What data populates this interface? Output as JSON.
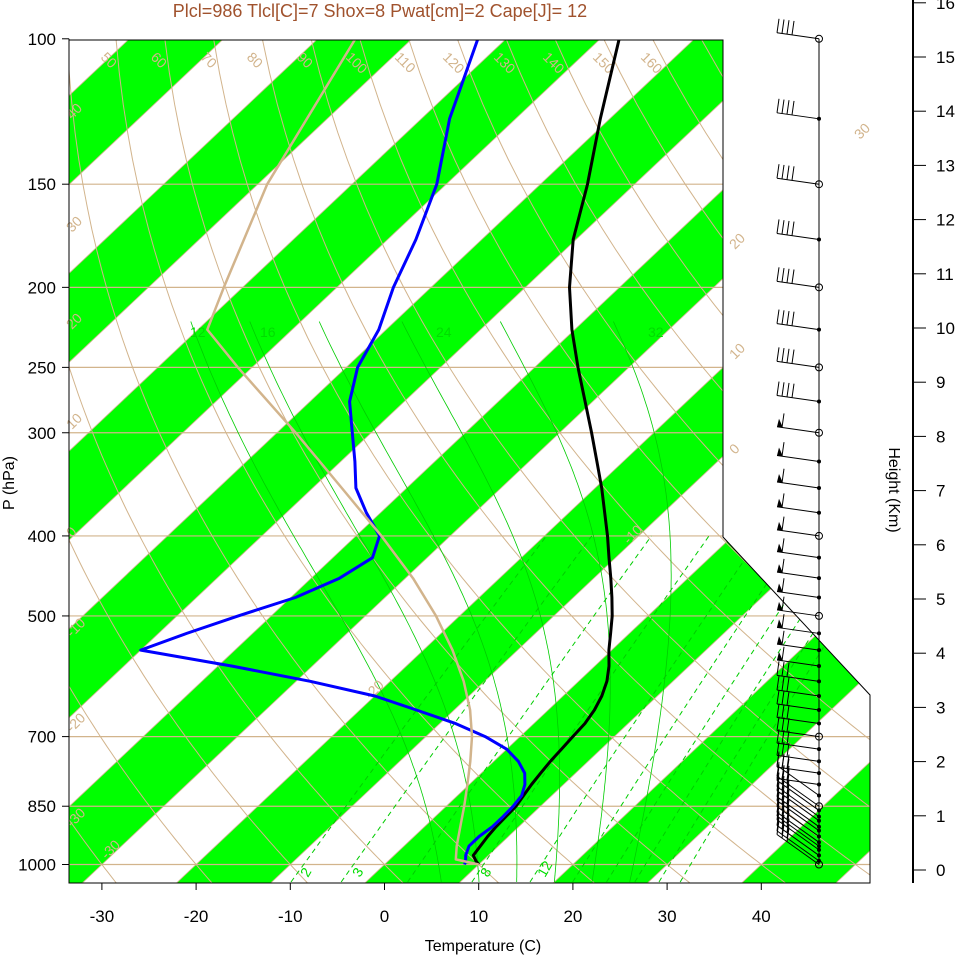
{
  "chart_data": {
    "type": "skew-t",
    "title": "Plcl=986 Tlcl[C]=7 Shox=8 Pwat[cm]=2 Cape[J]= 12",
    "xlabel": "Temperature (C)",
    "ylabel": "P (hPa)",
    "right_axis_label": "Height (Km)",
    "x_ticks": [
      "-30",
      "-20",
      "-10",
      "0",
      "10",
      "20",
      "30",
      "40"
    ],
    "y_ticks": [
      "100",
      "150",
      "200",
      "250",
      "300",
      "400",
      "500",
      "700",
      "850",
      "1000"
    ],
    "height_ticks": [
      "0",
      "1",
      "2",
      "3",
      "4",
      "5",
      "6",
      "7",
      "8",
      "9",
      "10",
      "11",
      "12",
      "13",
      "14",
      "15",
      "16"
    ],
    "xlim": [
      -33.5,
      52
    ],
    "ylim_hpa": [
      1050,
      100
    ],
    "isotherm_labels": [
      "-30",
      "-20",
      "-10",
      "0",
      "10",
      "20",
      "30"
    ],
    "dry_adiabat_labels": [
      "-30",
      "-20",
      "-10",
      "0",
      "10",
      "20",
      "30",
      "40",
      "50",
      "60",
      "70",
      "80",
      "90",
      "100",
      "110",
      "120",
      "130",
      "140",
      "150",
      "160"
    ],
    "mixing_ratio_labels": [
      "2",
      "3",
      "8",
      "12",
      "12",
      "16",
      "24",
      "32"
    ],
    "colors": {
      "isotherm_band": "#00ff00",
      "lines": "#d2b48c",
      "temperature": "#000000",
      "dewpoint": "#0000ff",
      "parcel": "#d2b48c",
      "mixing_ratio": "#00cc00",
      "title": "#a0522d"
    },
    "series": [
      {
        "points": [
          [
            1000,
            10
          ],
          [
            990,
            9.3
          ],
          [
            975,
            8.4
          ],
          [
            950,
            8.1
          ],
          [
            925,
            7.8
          ],
          [
            900,
            7.6
          ],
          [
            875,
            7.5
          ],
          [
            850,
            7.4
          ],
          [
            825,
            7.0
          ],
          [
            800,
            6.6
          ],
          [
            775,
            6.3
          ],
          [
            750,
            6.0
          ],
          [
            725,
            5.8
          ],
          [
            700,
            5.6
          ],
          [
            675,
            5.4
          ],
          [
            650,
            4.9
          ],
          [
            625,
            4.1
          ],
          [
            600,
            3.0
          ],
          [
            575,
            1.5
          ],
          [
            550,
            -0.3
          ],
          [
            525,
            -2.0
          ],
          [
            500,
            -3.8
          ],
          [
            475,
            -5.9
          ],
          [
            450,
            -8.2
          ],
          [
            425,
            -10.7
          ],
          [
            400,
            -13.3
          ],
          [
            375,
            -16.2
          ],
          [
            350,
            -19.3
          ],
          [
            325,
            -22.8
          ],
          [
            300,
            -26.6
          ],
          [
            275,
            -30.8
          ],
          [
            250,
            -35.4
          ],
          [
            225,
            -40.3
          ],
          [
            200,
            -45.3
          ],
          [
            175,
            -50.3
          ],
          [
            150,
            -55.0
          ],
          [
            125,
            -61.0
          ],
          [
            100,
            -68.0
          ]
        ]
      },
      {
        "points": [
          [
            1000,
            8.5
          ],
          [
            990,
            8.2
          ],
          [
            975,
            7.6
          ],
          [
            950,
            6.9
          ],
          [
            925,
            6.9
          ],
          [
            900,
            7.2
          ],
          [
            875,
            7.2
          ],
          [
            850,
            7.1
          ],
          [
            825,
            6.8
          ],
          [
            800,
            5.9
          ],
          [
            775,
            4.6
          ],
          [
            750,
            2.6
          ],
          [
            725,
            0.0
          ],
          [
            700,
            -3.7
          ],
          [
            675,
            -8.3
          ],
          [
            650,
            -14.0
          ],
          [
            625,
            -20.0
          ],
          [
            600,
            -28.5
          ],
          [
            575,
            -38.5
          ],
          [
            550,
            -50.0
          ],
          [
            525,
            -47.0
          ],
          [
            500,
            -43.5
          ],
          [
            475,
            -39.5
          ],
          [
            450,
            -37.0
          ],
          [
            425,
            -35.8
          ],
          [
            400,
            -37.5
          ],
          [
            375,
            -41.5
          ],
          [
            350,
            -45.4
          ],
          [
            325,
            -48.5
          ],
          [
            300,
            -52.0
          ],
          [
            275,
            -55.8
          ],
          [
            250,
            -58.8
          ],
          [
            225,
            -60.8
          ],
          [
            200,
            -64.0
          ],
          [
            175,
            -67.0
          ],
          [
            150,
            -71.0
          ],
          [
            125,
            -77.0
          ],
          [
            100,
            -83.0
          ]
        ]
      },
      {
        "points": [
          [
            1000,
            10
          ],
          [
            986,
            7.0
          ],
          [
            950,
            5.6
          ],
          [
            900,
            3.8
          ],
          [
            850,
            1.9
          ],
          [
            800,
            -0.2
          ],
          [
            750,
            -2.5
          ],
          [
            700,
            -5.1
          ],
          [
            650,
            -8.3
          ],
          [
            600,
            -12.2
          ],
          [
            550,
            -16.9
          ],
          [
            500,
            -22.5
          ],
          [
            450,
            -29.2
          ],
          [
            400,
            -37.3
          ],
          [
            350,
            -46.9
          ],
          [
            300,
            -58.0
          ],
          [
            250,
            -71.5
          ],
          [
            225,
            -79.0
          ],
          [
            200,
            -82.0
          ],
          [
            150,
            -89.0
          ],
          [
            100,
            -96.0
          ]
        ]
      }
    ],
    "wind_barb_levels_hpa": [
      1000,
      990,
      975,
      960,
      950,
      940,
      925,
      910,
      900,
      885,
      875,
      860,
      850,
      825,
      800,
      775,
      750,
      725,
      700,
      675,
      650,
      625,
      600,
      575,
      550,
      525,
      500,
      475,
      450,
      425,
      400,
      375,
      350,
      325,
      300,
      275,
      250,
      225,
      200,
      175,
      150,
      125,
      100
    ]
  }
}
